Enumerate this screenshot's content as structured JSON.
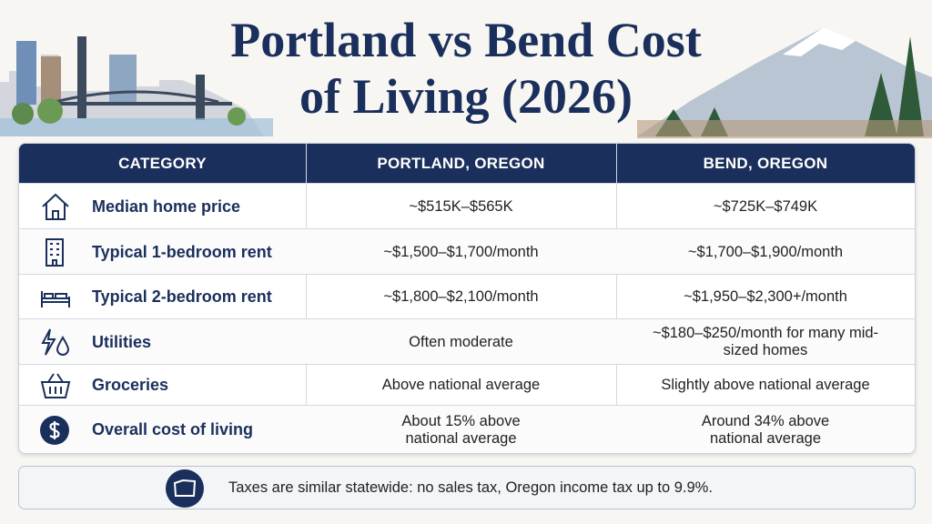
{
  "header": {
    "title_line1": "Portland vs Bend Cost",
    "title_line2": "of Living (2026)"
  },
  "table": {
    "header": [
      "CATEGORY",
      "PORTLAND, OREGON",
      "BEND, OREGON"
    ],
    "rows": [
      [
        "Median home price",
        "~$515K–$565K",
        "~$725K–$749K"
      ],
      [
        "Typical 1-bedroom rent",
        "~$1,500–$1,700/month",
        "~$1,700–$1,900/month"
      ],
      [
        "Typical 2-bedroom rent",
        "~$1,800–$2,100/month",
        "~$1,950–$2,300+/month"
      ],
      [
        "Utilities",
        "Often moderate",
        "~$180–$250/month for many mid-sized homes"
      ],
      [
        "Groceries",
        "Above national average",
        "Slightly above national average"
      ],
      [
        "Overall cost of living",
        "About 15% above national average",
        "Around 34% above national average"
      ]
    ]
  },
  "footer": {
    "note": "Taxes are similar statewide: no sales tax, Oregon income tax up to 9.9%."
  }
}
